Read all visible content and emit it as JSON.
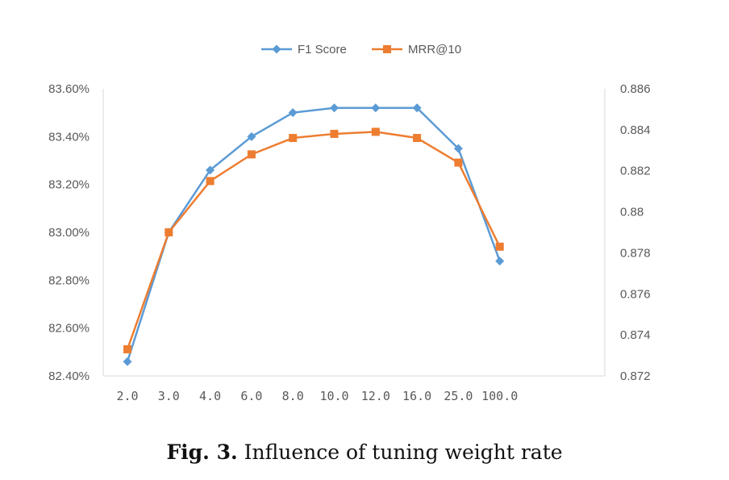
{
  "chart_data": {
    "type": "line",
    "categories": [
      "2.0",
      "3.0",
      "4.0",
      "6.0",
      "8.0",
      "10.0",
      "12.0",
      "16.0",
      "25.0",
      "100.0"
    ],
    "series": [
      {
        "name": "F1 Score",
        "axis": "left",
        "color": "#5B9BD5",
        "marker": "diamond",
        "values": [
          82.46,
          83.0,
          83.26,
          83.4,
          83.5,
          83.52,
          83.52,
          83.52,
          83.35,
          82.88
        ]
      },
      {
        "name": "MRR@10",
        "axis": "right",
        "color": "#ED7D31",
        "marker": "square",
        "values": [
          0.8733,
          0.879,
          0.8815,
          0.8828,
          0.8836,
          0.8838,
          0.8839,
          0.8836,
          0.8824,
          0.8783
        ]
      }
    ],
    "y_left": {
      "min": 82.4,
      "max": 83.6,
      "ticks": [
        "83.60%",
        "83.40%",
        "83.20%",
        "83.00%",
        "82.80%",
        "82.60%",
        "82.40%"
      ],
      "tick_values": [
        83.6,
        83.4,
        83.2,
        83.0,
        82.8,
        82.6,
        82.4
      ]
    },
    "y_right": {
      "min": 0.872,
      "max": 0.886,
      "ticks": [
        "0.886",
        "0.884",
        "0.882",
        "0.88",
        "0.878",
        "0.876",
        "0.874",
        "0.872"
      ],
      "tick_values": [
        0.886,
        0.884,
        0.882,
        0.88,
        0.878,
        0.876,
        0.874,
        0.872
      ]
    },
    "legend_position": "top",
    "grid": false
  },
  "caption": {
    "label": "Fig. 3.",
    "text": "Influence of tuning weight rate"
  }
}
